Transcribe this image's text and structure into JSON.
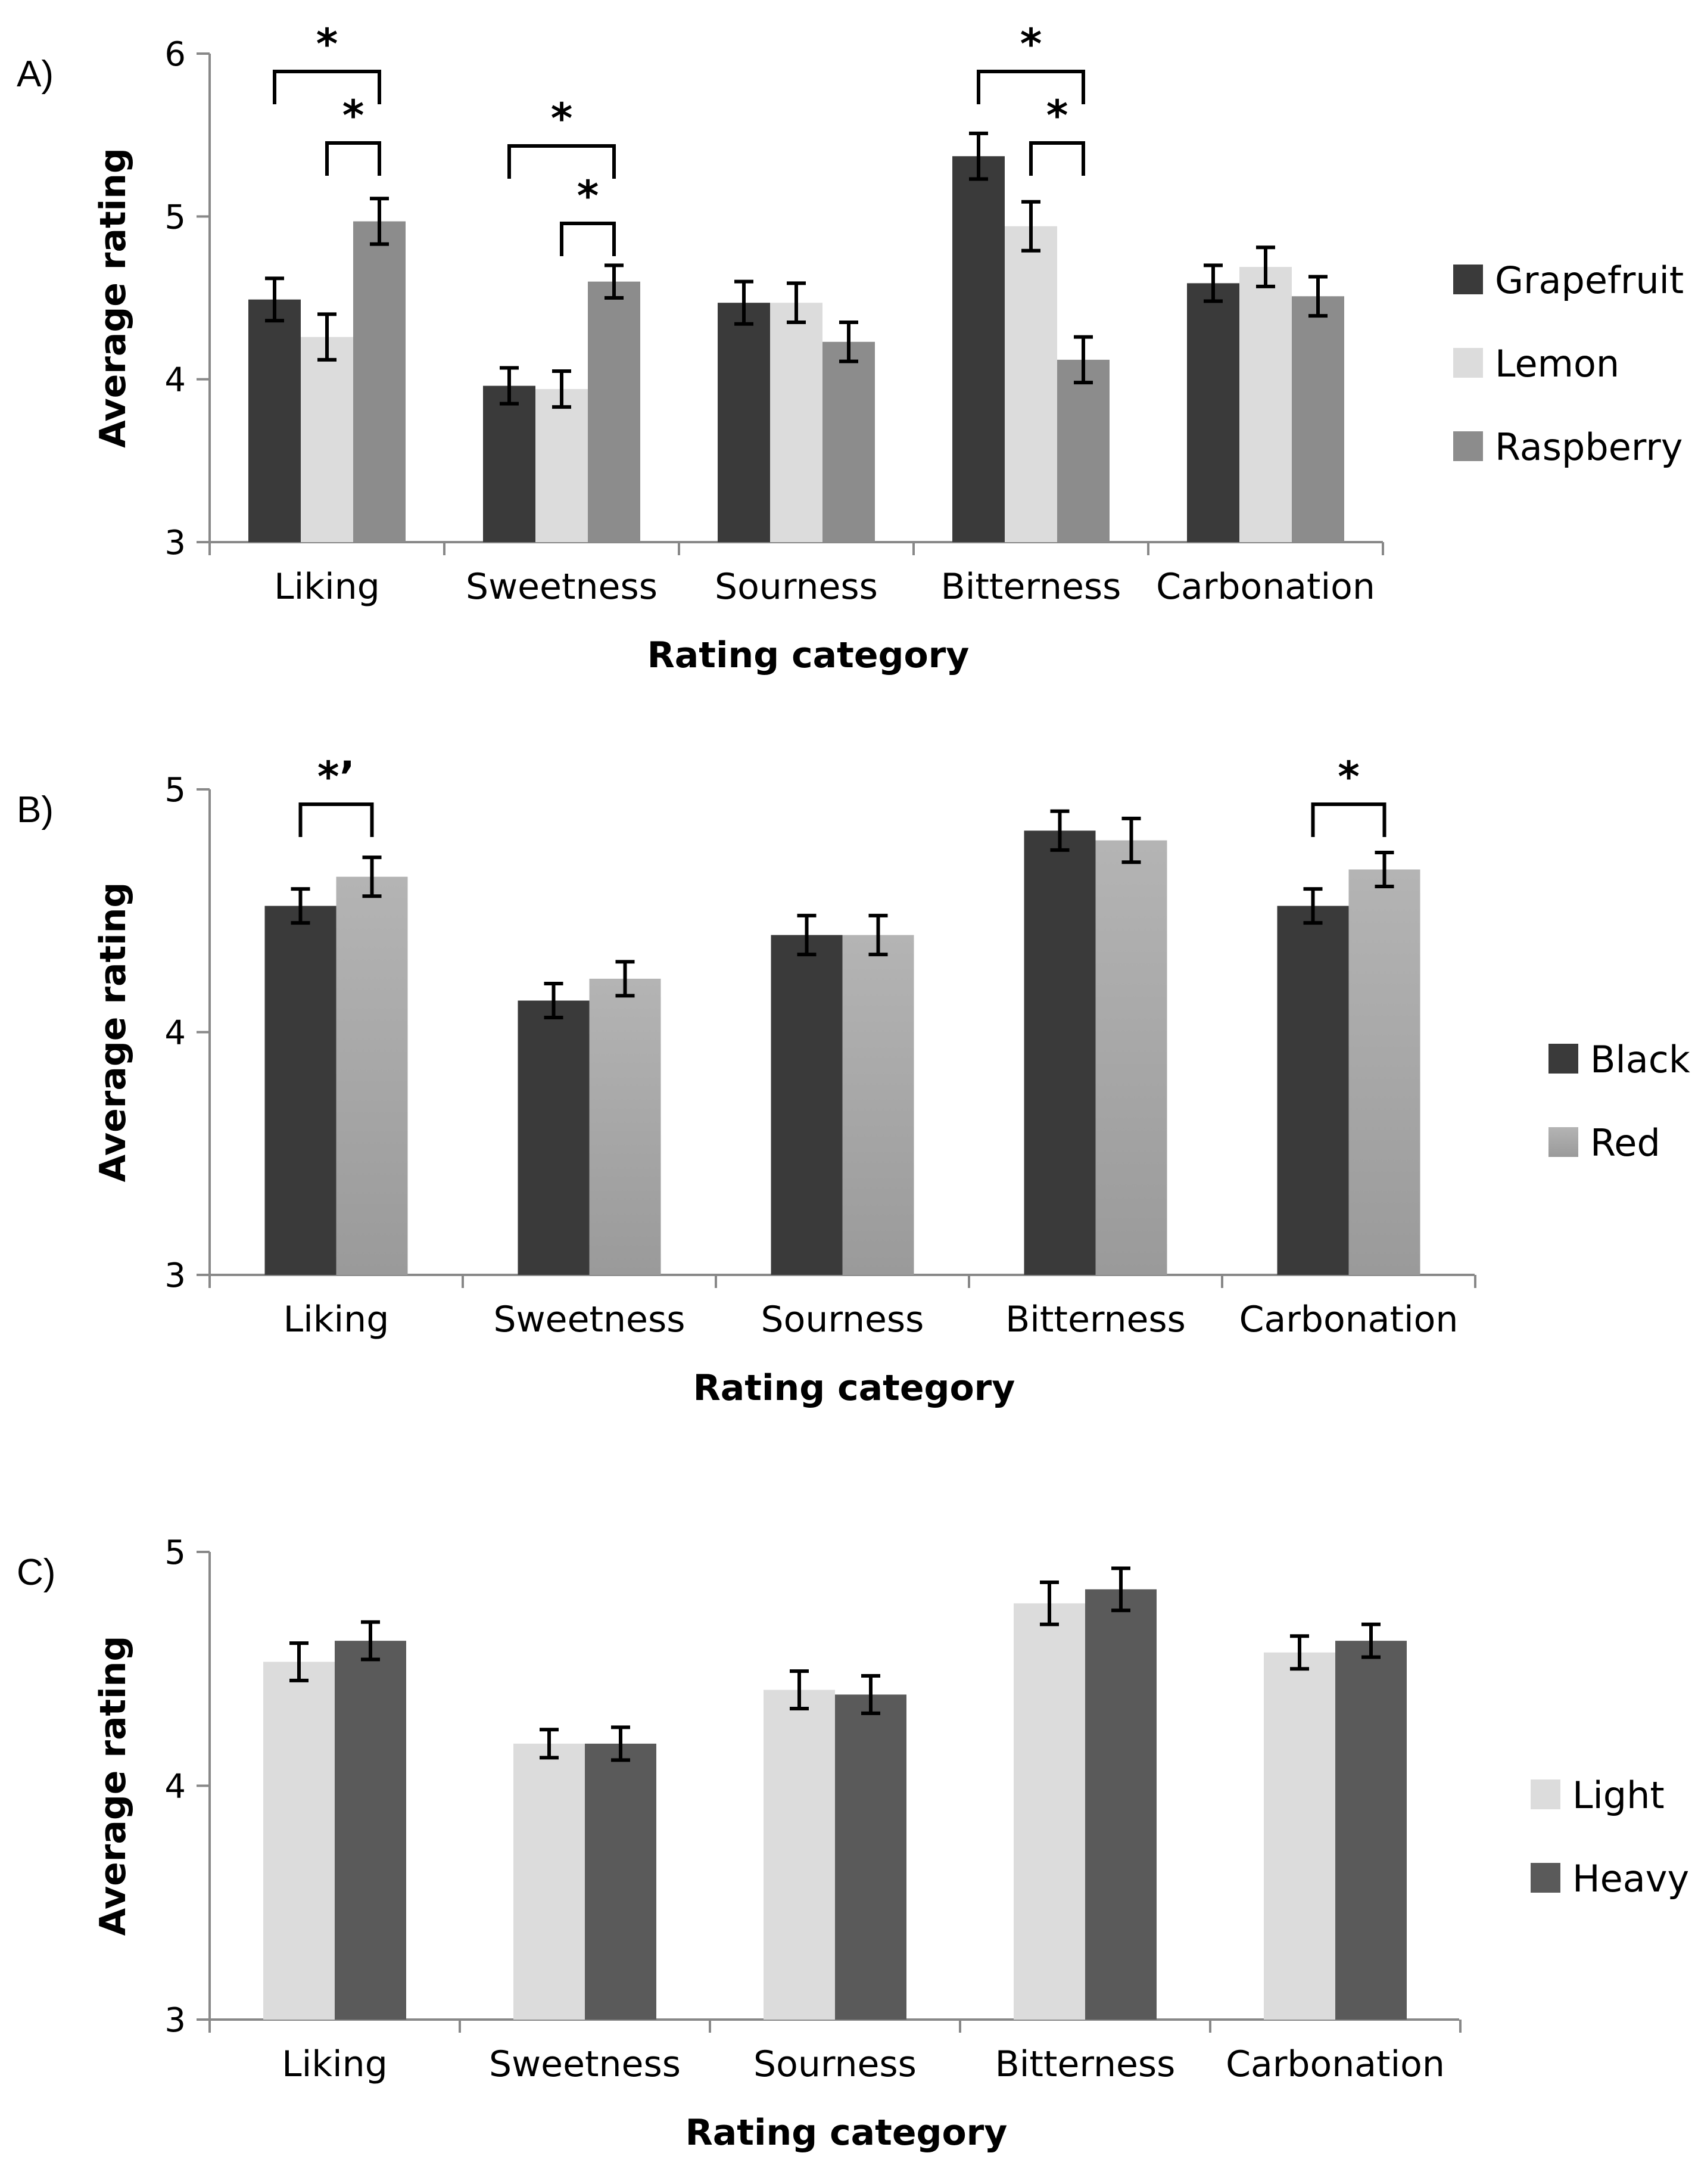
{
  "chart_data": [
    {
      "panel_label": "A)",
      "type": "bar",
      "title": "",
      "xlabel": "Rating category",
      "ylabel": "Average rating",
      "ylim": [
        3,
        6
      ],
      "yticks": [
        "3",
        "4",
        "5",
        "6"
      ],
      "grid": false,
      "legend_position": "right",
      "categories": [
        "Liking",
        "Sweetness",
        "Sourness",
        "Bitterness",
        "Carbonation"
      ],
      "series": [
        {
          "name": "Grapefruit",
          "color": "#3a3a3a",
          "values": [
            4.49,
            3.96,
            4.47,
            5.37,
            4.59
          ],
          "errors": [
            0.13,
            0.11,
            0.13,
            0.14,
            0.11
          ]
        },
        {
          "name": "Lemon",
          "color": "#dcdcdc",
          "values": [
            4.26,
            3.94,
            4.47,
            4.94,
            4.69
          ],
          "errors": [
            0.14,
            0.11,
            0.12,
            0.15,
            0.12
          ]
        },
        {
          "name": "Raspberry",
          "color": "#8c8c8c",
          "values": [
            4.97,
            4.6,
            4.23,
            4.12,
            4.51
          ],
          "errors": [
            0.14,
            0.1,
            0.12,
            0.14,
            0.12
          ]
        }
      ],
      "significance": [
        {
          "category": 0,
          "from": 0,
          "to": 2,
          "label": "*",
          "level": 0
        },
        {
          "category": 0,
          "from": 1,
          "to": 2,
          "label": "*",
          "level": 1
        },
        {
          "category": 1,
          "from": 0,
          "to": 2,
          "label": "*",
          "level": 0
        },
        {
          "category": 1,
          "from": 1,
          "to": 2,
          "label": "*",
          "level": 1
        },
        {
          "category": 3,
          "from": 0,
          "to": 2,
          "label": "*",
          "level": 0
        },
        {
          "category": 3,
          "from": 1,
          "to": 2,
          "label": "*",
          "level": 1
        }
      ]
    },
    {
      "panel_label": "B)",
      "type": "bar",
      "title": "",
      "xlabel": "Rating category",
      "ylabel": "Average rating",
      "ylim": [
        3,
        5
      ],
      "yticks": [
        "3",
        "4",
        "5"
      ],
      "grid": false,
      "legend_position": "right",
      "categories": [
        "Liking",
        "Sweetness",
        "Sourness",
        "Bitterness",
        "Carbonation"
      ],
      "series": [
        {
          "name": "Black",
          "color": "#3a3a3a",
          "values": [
            4.52,
            4.13,
            4.4,
            4.83,
            4.52
          ],
          "errors": [
            0.07,
            0.07,
            0.08,
            0.08,
            0.07
          ]
        },
        {
          "name": "Red",
          "color": "#b4b4b4",
          "values": [
            4.64,
            4.22,
            4.4,
            4.79,
            4.67
          ],
          "errors": [
            0.08,
            0.07,
            0.08,
            0.09,
            0.07
          ]
        }
      ],
      "significance": [
        {
          "category": 0,
          "from": 0,
          "to": 1,
          "label": "*’",
          "level": 0
        },
        {
          "category": 4,
          "from": 0,
          "to": 1,
          "label": "*",
          "level": 0
        }
      ]
    },
    {
      "panel_label": "C)",
      "type": "bar",
      "title": "",
      "xlabel": "Rating category",
      "ylabel": "Average rating",
      "ylim": [
        3,
        5
      ],
      "yticks": [
        "3",
        "4",
        "5"
      ],
      "grid": false,
      "legend_position": "right",
      "categories": [
        "Liking",
        "Sweetness",
        "Sourness",
        "Bitterness",
        "Carbonation"
      ],
      "series": [
        {
          "name": "Light",
          "color": "#dcdcdc",
          "values": [
            4.53,
            4.18,
            4.41,
            4.78,
            4.57
          ],
          "errors": [
            0.08,
            0.06,
            0.08,
            0.09,
            0.07
          ]
        },
        {
          "name": "Heavy",
          "color": "#5a5a5a",
          "values": [
            4.62,
            4.18,
            4.39,
            4.84,
            4.62
          ],
          "errors": [
            0.08,
            0.07,
            0.08,
            0.09,
            0.07
          ]
        }
      ],
      "significance": []
    }
  ]
}
